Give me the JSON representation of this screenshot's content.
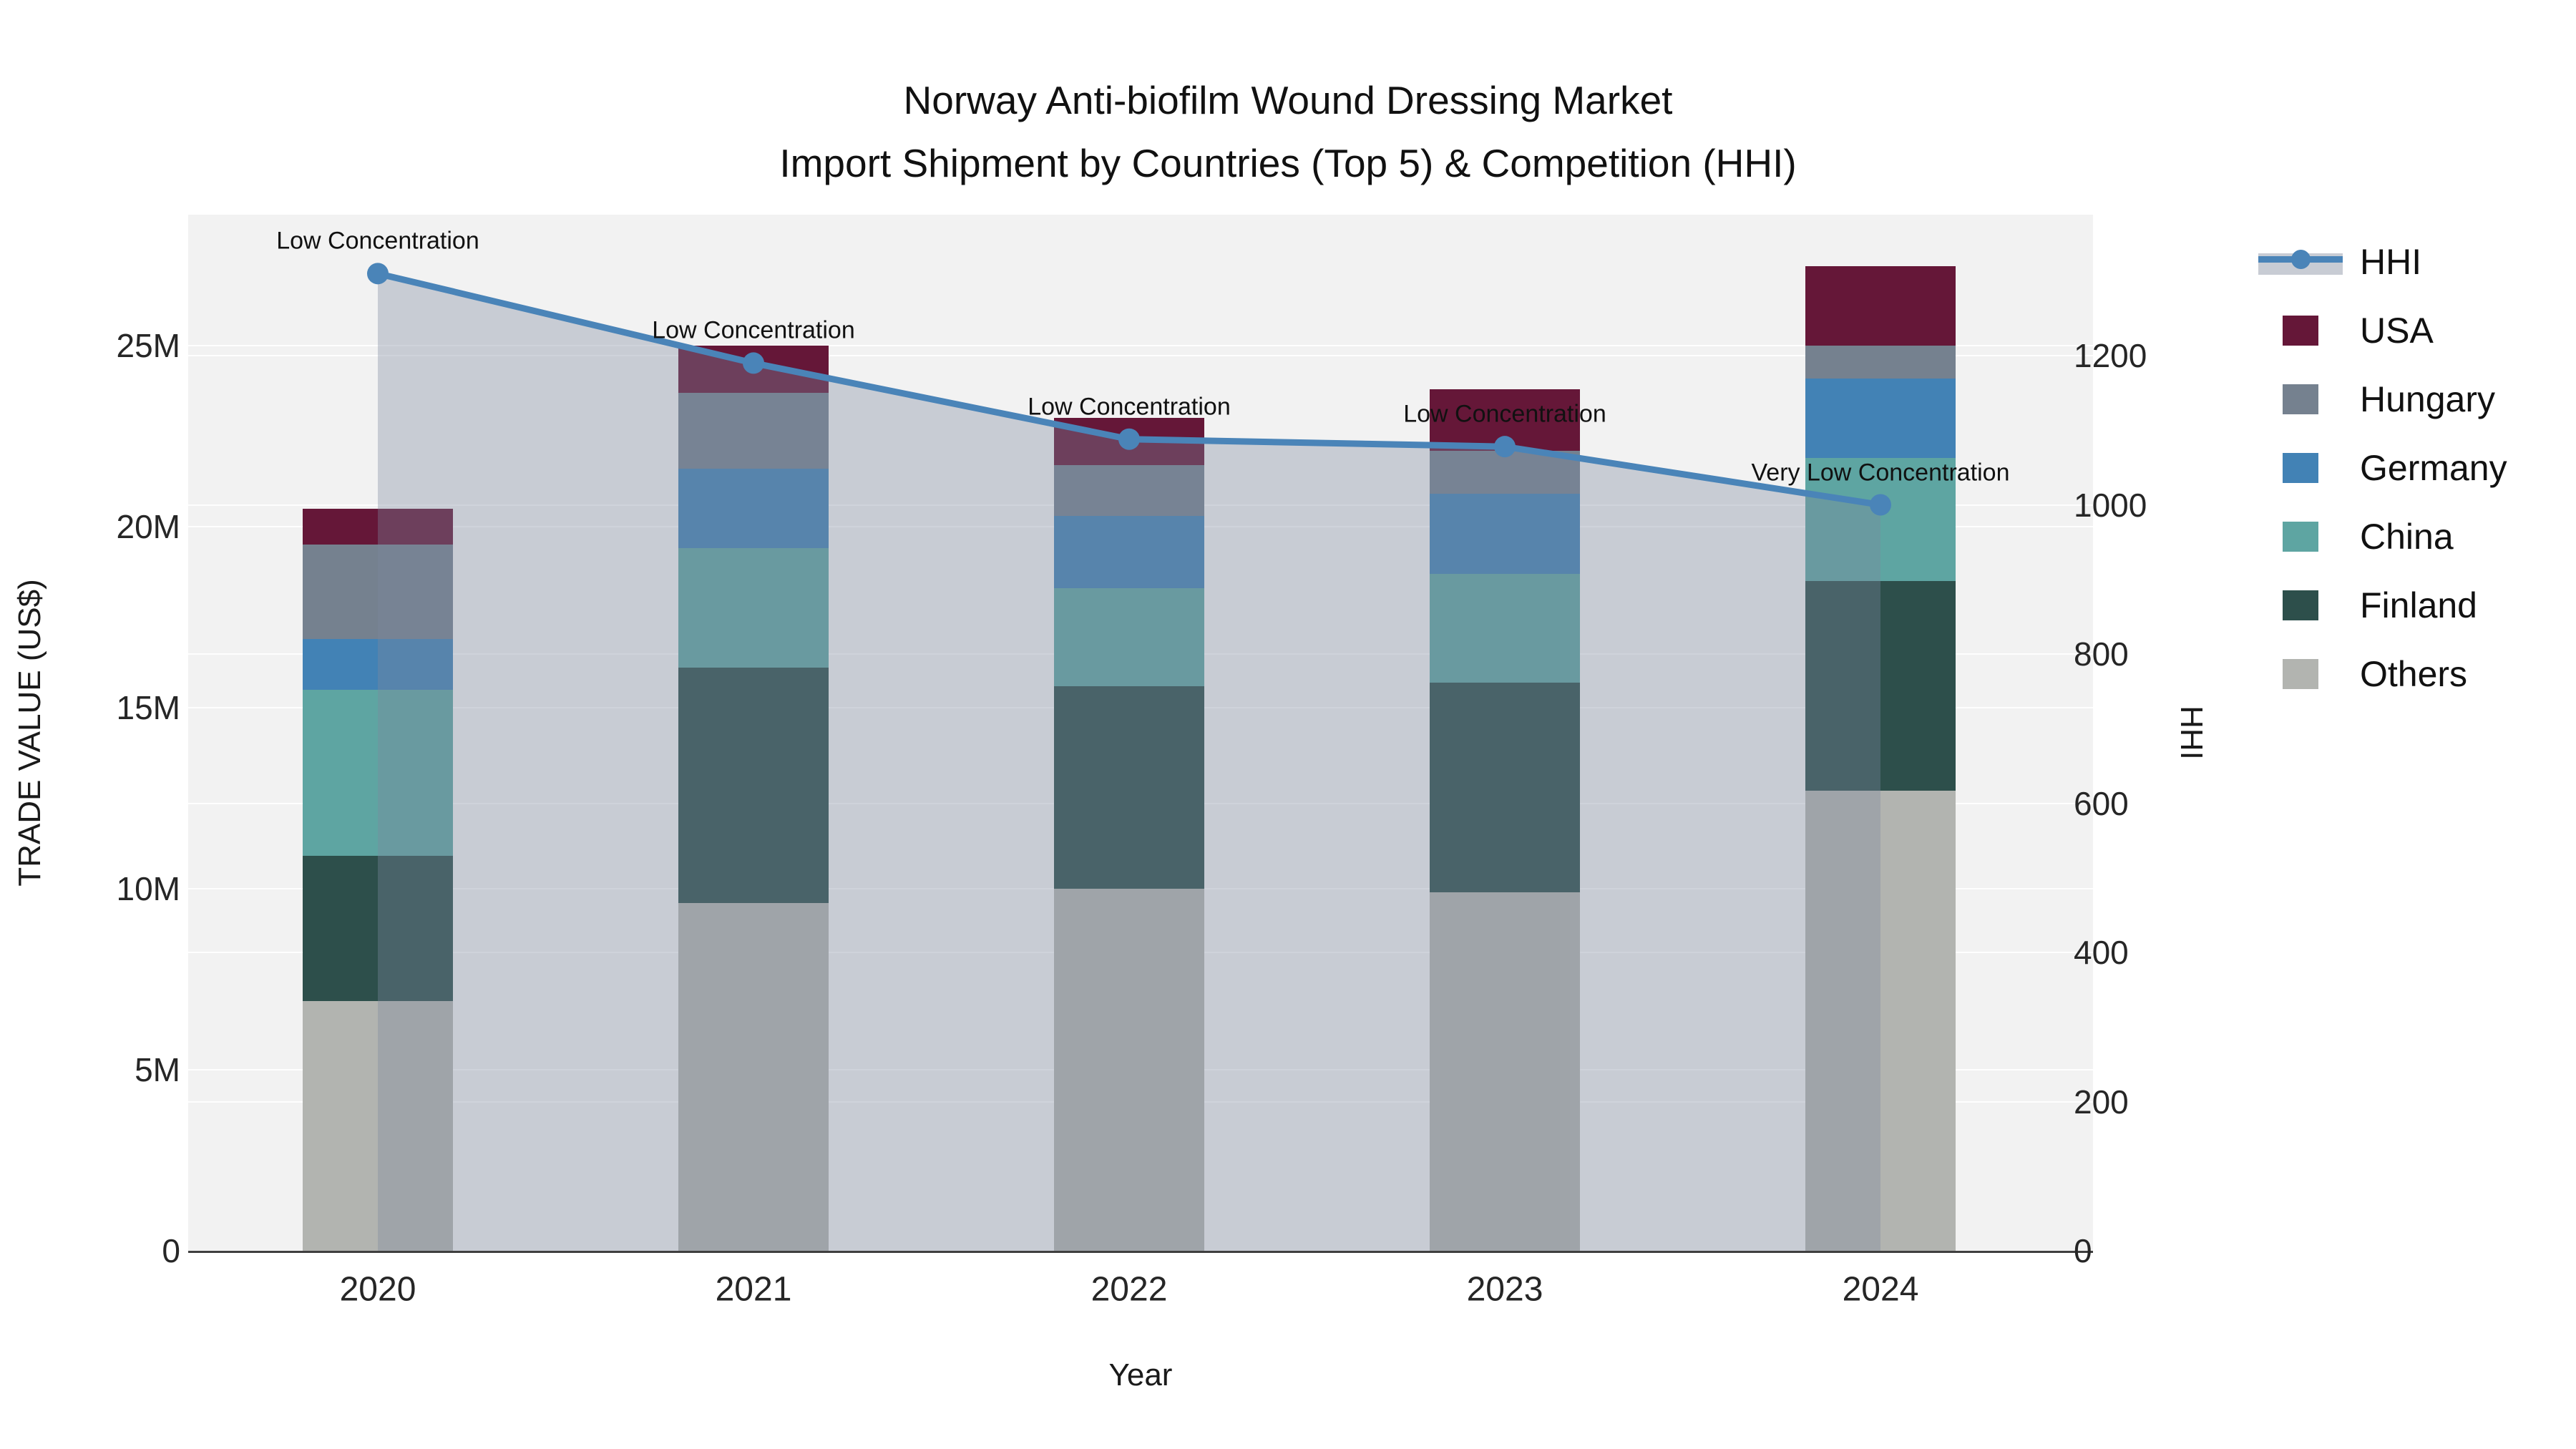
{
  "title": {
    "line1": "Norway Anti-biofilm Wound Dressing Market",
    "line2": "Import Shipment by Countries (Top 5) & Competition (HHI)"
  },
  "axes": {
    "left": {
      "title": "TRADE VALUE (US$)",
      "ticks": [
        "0",
        "5M",
        "10M",
        "15M",
        "20M",
        "25M"
      ],
      "tick_values_m": [
        0,
        5,
        10,
        15,
        20,
        25
      ],
      "range_m": [
        0,
        28.6
      ]
    },
    "right": {
      "title": "HHI",
      "ticks": [
        "0",
        "200",
        "400",
        "600",
        "800",
        "1000",
        "1200"
      ],
      "tick_values": [
        0,
        200,
        400,
        600,
        800,
        1000,
        1200
      ],
      "range": [
        0,
        1389
      ]
    },
    "x": {
      "title": "Year",
      "ticks": [
        "2020",
        "2021",
        "2022",
        "2023",
        "2024"
      ]
    }
  },
  "legend": [
    {
      "label": "HHI",
      "type": "line",
      "color": "#4a84b8",
      "fill": "#c8ccd4"
    },
    {
      "label": "USA",
      "type": "swatch",
      "color": "#651738"
    },
    {
      "label": "Hungary",
      "type": "swatch",
      "color": "#75818f"
    },
    {
      "label": "Germany",
      "type": "swatch",
      "color": "#4282b5"
    },
    {
      "label": "China",
      "type": "swatch",
      "color": "#5ea5a2"
    },
    {
      "label": "Finland",
      "type": "swatch",
      "color": "#2d4f4b"
    },
    {
      "label": "Others",
      "type": "swatch",
      "color": "#b2b4b0"
    }
  ],
  "chart_data": {
    "type": "composed",
    "subtype": "stacked-bar + line-area, dual y-axis",
    "categories": [
      "2020",
      "2021",
      "2022",
      "2023",
      "2024"
    ],
    "bar_value_unit": "million US$",
    "stack_order_bottom_to_top": [
      "Others",
      "Finland",
      "China",
      "Germany",
      "Hungary",
      "USA"
    ],
    "series": [
      {
        "name": "USA",
        "color": "#651738",
        "values": [
          1.0,
          1.3,
          1.3,
          1.7,
          2.2
        ]
      },
      {
        "name": "Hungary",
        "color": "#75818f",
        "values": [
          2.6,
          2.1,
          1.4,
          1.2,
          0.9
        ]
      },
      {
        "name": "Germany",
        "color": "#4282b5",
        "values": [
          1.4,
          2.2,
          2.0,
          2.2,
          2.2
        ]
      },
      {
        "name": "China",
        "color": "#5ea5a2",
        "values": [
          4.6,
          3.3,
          2.7,
          3.0,
          3.4
        ]
      },
      {
        "name": "Finland",
        "color": "#2d4f4b",
        "values": [
          4.0,
          6.5,
          5.6,
          5.8,
          5.8
        ]
      },
      {
        "name": "Others",
        "color": "#b2b4b0",
        "values": [
          6.9,
          9.6,
          10.0,
          9.9,
          12.7
        ]
      }
    ],
    "totals_m": [
      20.5,
      25.0,
      23.0,
      23.8,
      27.2
    ],
    "hhi_line": {
      "name": "HHI",
      "values": [
        1310,
        1190,
        1088,
        1078,
        1000
      ],
      "color": "#4a84b8",
      "area_fill": "rgba(126,136,158,0.36)"
    },
    "annotations": [
      {
        "year": "2020",
        "text": "Low Concentration"
      },
      {
        "year": "2021",
        "text": "Low Concentration"
      },
      {
        "year": "2022",
        "text": "Low Concentration"
      },
      {
        "year": "2023",
        "text": "Low Concentration"
      },
      {
        "year": "2024",
        "text": "Very Low Concentration"
      }
    ],
    "xlabel": "Year",
    "ylabel_left": "TRADE VALUE (US$)",
    "ylabel_right": "HHI",
    "grid": true,
    "legend_position": "right"
  },
  "colors": {
    "plot_bg": "#f2f2f2",
    "page_bg": "#ffffff",
    "gridline": "rgba(255,255,255,0.9)",
    "axis_line": "#3f3f3f",
    "text": "#1a1a1a"
  }
}
